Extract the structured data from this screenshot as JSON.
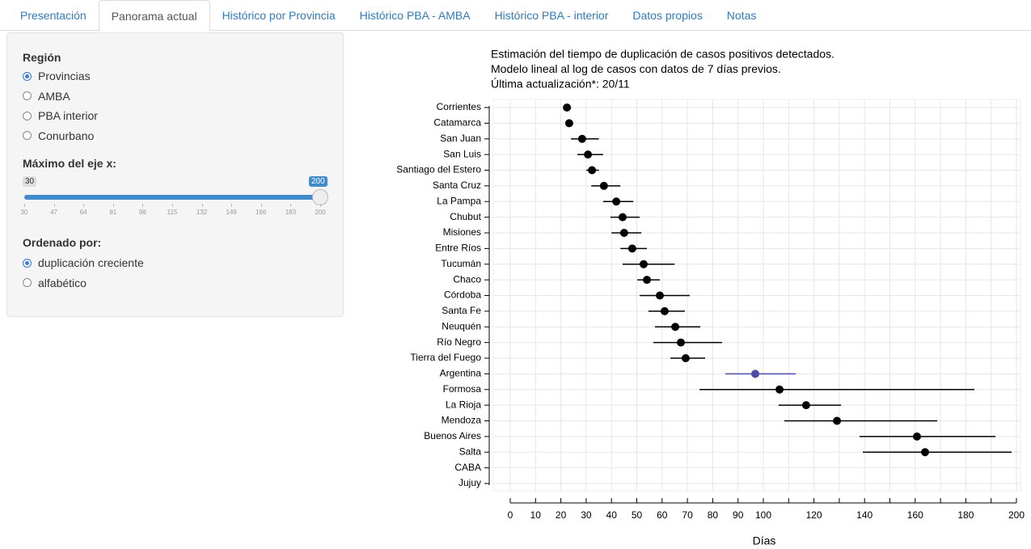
{
  "tabs": {
    "items": [
      "Presentación",
      "Panorama actual",
      "Histórico por Provincia",
      "Histórico PBA - AMBA",
      "Histórico PBA - interior",
      "Datos propios",
      "Notas"
    ],
    "active": 1
  },
  "sidebar": {
    "region": {
      "label": "Región",
      "options": [
        "Provincias",
        "AMBA",
        "PBA interior",
        "Conurbano"
      ],
      "selected": 0
    },
    "slider": {
      "label": "Máximo del eje x:",
      "min": 30,
      "max": 200,
      "value": 200,
      "ticks": [
        30,
        47,
        64,
        81,
        98,
        115,
        132,
        149,
        166,
        183,
        200
      ]
    },
    "order": {
      "label": "Ordenado por:",
      "options": [
        "duplicación creciente",
        "alfabético"
      ],
      "selected": 0
    }
  },
  "chart_data": {
    "type": "dot-errorbar",
    "title_lines": [
      "Estimación del tiempo de duplicación de casos positivos detectados.",
      "Modelo lineal al log de casos con datos de 7 días previos.",
      "Última actualización*: 20/11"
    ],
    "x_label": "Días",
    "categories": [
      "Corrientes",
      "Catamarca",
      "San Juan",
      "San Luis",
      "Santiago del Estero",
      "Santa Cruz",
      "La Pampa",
      "Chubut",
      "Misiones",
      "Entre Ríos",
      "Tucumán",
      "Chaco",
      "Córdoba",
      "Santa Fe",
      "Neuquén",
      "Río Negro",
      "Tierra del Fuego",
      "Argentina",
      "Formosa",
      "La Rioja",
      "Mendoza",
      "Buenos Aires",
      "Salta",
      "CABA",
      "Jujuy"
    ],
    "values": [
      22.4,
      23.3,
      28.4,
      30.7,
      32.3,
      37,
      41.9,
      44.4,
      45,
      48.2,
      52.7,
      54,
      59.1,
      61,
      65.2,
      67.4,
      69.3,
      96.8,
      106.4,
      116.9,
      129.1,
      160.7,
      163.9,
      null,
      null
    ],
    "lower": [
      21,
      null,
      24,
      26.5,
      30,
      32,
      36.7,
      39.6,
      40,
      43.5,
      44.4,
      50.2,
      51.1,
      54.6,
      57.2,
      56.5,
      63.3,
      85,
      74.8,
      106,
      108.3,
      138,
      139.3,
      null,
      null
    ],
    "upper": [
      24,
      null,
      35,
      36.7,
      35,
      43.5,
      48.6,
      51.1,
      51.8,
      54,
      64.9,
      59.1,
      70.9,
      69,
      75.1,
      83.7,
      77,
      112.8,
      183.4,
      130.7,
      168.7,
      191.7,
      198.1,
      null,
      null
    ],
    "colors": [
      "#000000",
      "#000000",
      "#000000",
      "#000000",
      "#000000",
      "#000000",
      "#000000",
      "#000000",
      "#000000",
      "#000000",
      "#000000",
      "#000000",
      "#000000",
      "#000000",
      "#000000",
      "#000000",
      "#000000",
      "#4b4ba8",
      "#000000",
      "#000000",
      "#000000",
      "#000000",
      "#000000",
      "#000000",
      "#000000"
    ],
    "xlim": [
      0,
      200
    ],
    "xticks": [
      0,
      10,
      20,
      30,
      40,
      50,
      60,
      70,
      80,
      90,
      100,
      120,
      140,
      160,
      180,
      200
    ],
    "minor_xticks": [
      110,
      130,
      150,
      170,
      190
    ],
    "grid": true
  }
}
